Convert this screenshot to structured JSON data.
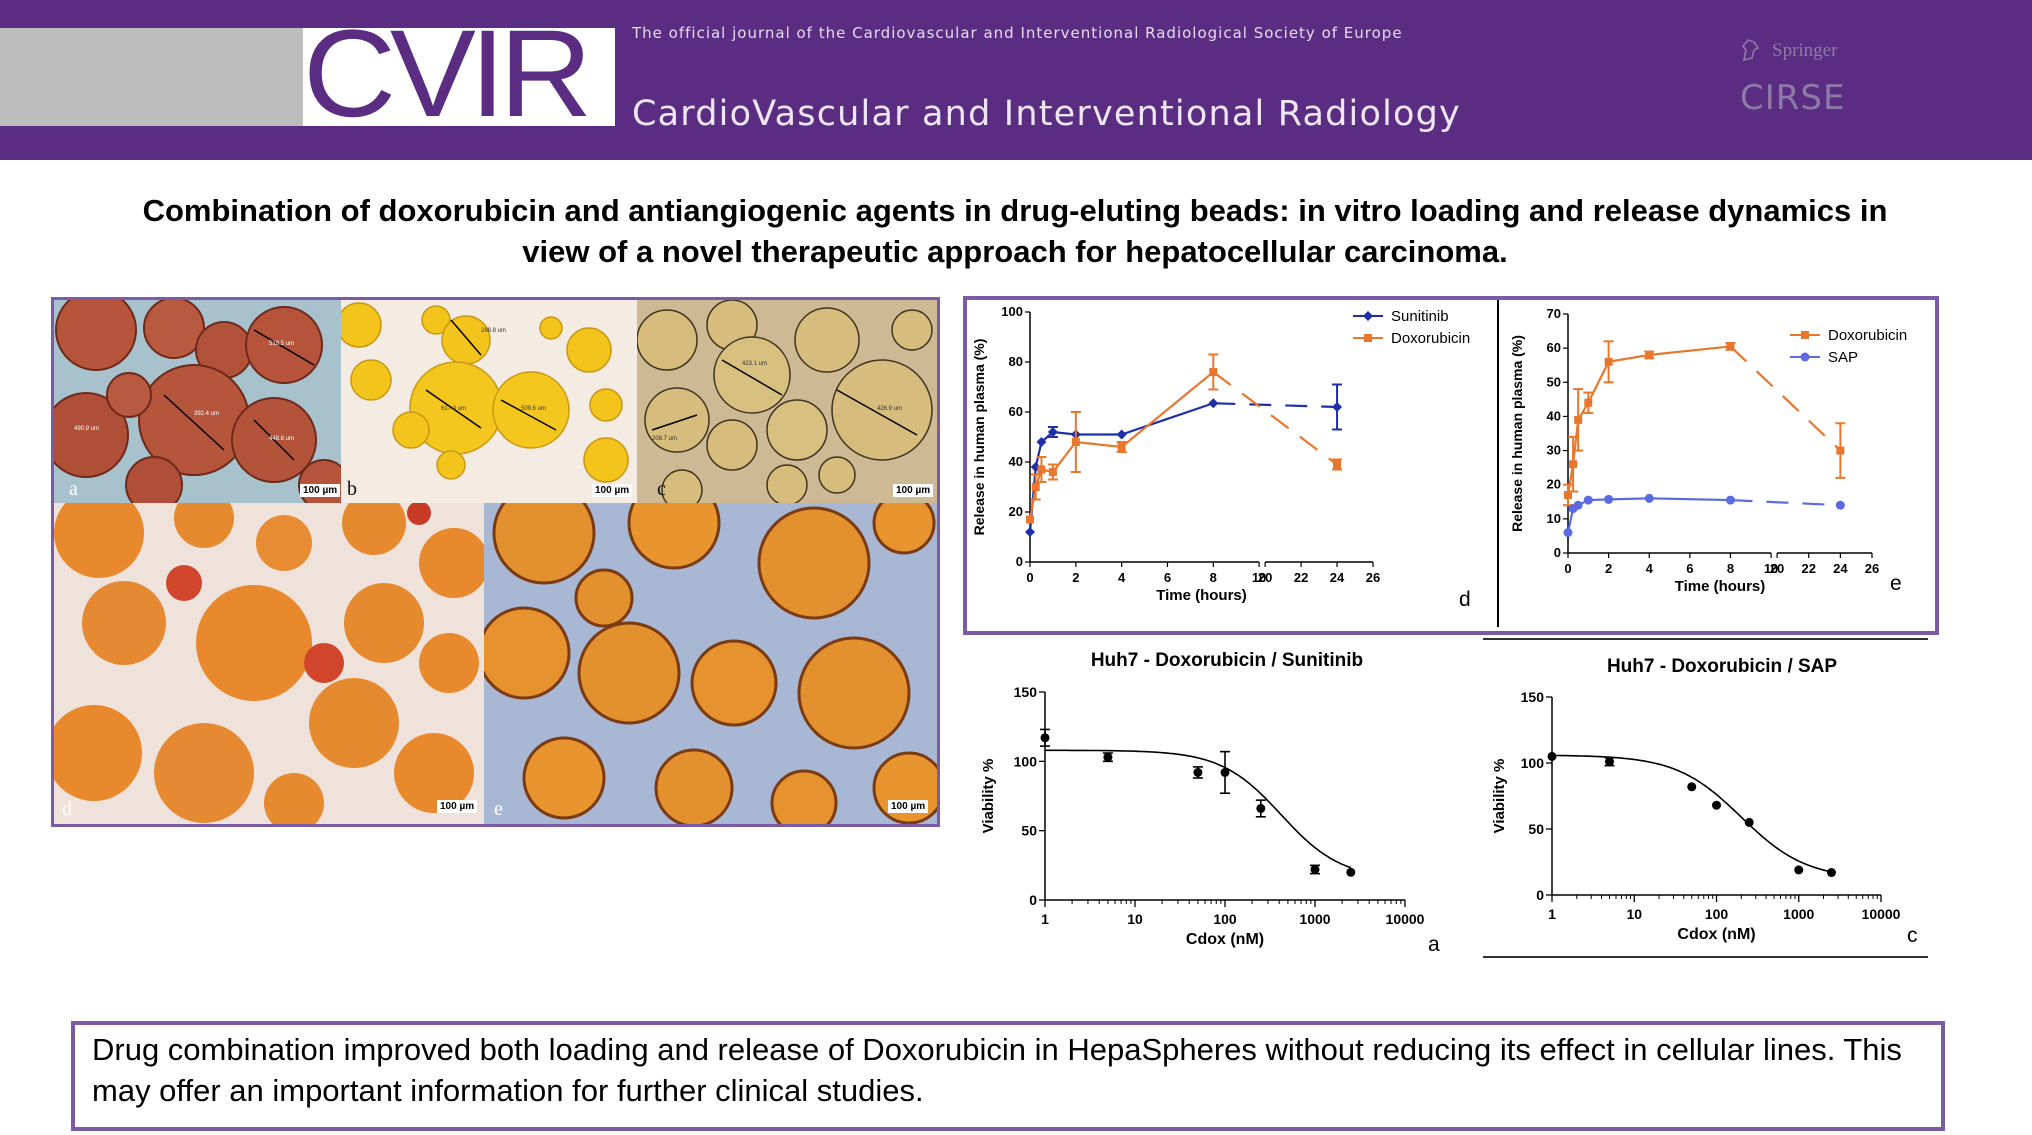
{
  "header": {
    "logo": "CVIR",
    "tagline": "The official journal of the  Cardiovascular and Interventional Radiological Society of Europe",
    "journal_name": "CardioVascular and Interventional Radiology",
    "publisher": "Springer",
    "society": "CIRSE"
  },
  "title": "Combination of doxorubicin and antiangiogenic agents in drug-eluting beads: in vitro loading and release dynamics in view of a novel therapeutic approach for hepatocellular carcinoma.",
  "photos": {
    "tiles": [
      {
        "label": "a",
        "scale": "100 µm",
        "measures": [
          "392.4 um",
          "448.8 um",
          "518.5 um",
          "490.9 um"
        ]
      },
      {
        "label": "b",
        "scale": "100 µm",
        "measures": [
          "288.8 um",
          "617.3 um",
          "509.6 um"
        ]
      },
      {
        "label": "c",
        "scale": "100 µm",
        "measures": [
          "423.1 um",
          "426.9 um",
          "208.7 um"
        ]
      },
      {
        "label": "d",
        "scale": "100 µm"
      },
      {
        "label": "e",
        "scale": "100 µm"
      }
    ],
    "colors": {
      "a": "#b5533a",
      "b": "#f2c21c",
      "c": "#c9a766",
      "d": "#e48a30",
      "e": "#d9852e"
    }
  },
  "chart_data": [
    {
      "type": "line",
      "panel_label": "d",
      "xlabel": "Time (hours)",
      "ylabel": "Release in human plasma (%)",
      "ylim": [
        0,
        100
      ],
      "yticks": [
        "0",
        "20",
        "40",
        "60",
        "80",
        "100"
      ],
      "xticks": [
        "0",
        "2",
        "4",
        "6",
        "8",
        "10",
        "20",
        "22",
        "24",
        "26"
      ],
      "x_axis_break": "10–20",
      "legend_position": "top-right",
      "series": [
        {
          "name": "Sunitinib",
          "color": "#1f2fa8",
          "marker": "diamond",
          "x": [
            0,
            0.25,
            0.5,
            1,
            2,
            4,
            8,
            24
          ],
          "y": [
            12,
            38,
            48,
            52,
            51,
            51,
            63.5,
            62
          ],
          "err": [
            0,
            0,
            0,
            2,
            0,
            0,
            0,
            9
          ]
        },
        {
          "name": "Doxorubicin",
          "color": "#e8772d",
          "marker": "square",
          "x": [
            0,
            0.25,
            0.5,
            1,
            2,
            4,
            8,
            24
          ],
          "y": [
            17,
            30,
            37,
            36,
            48,
            46,
            76,
            39
          ],
          "err": [
            0,
            5,
            5,
            3,
            12,
            2,
            7,
            2
          ]
        }
      ]
    },
    {
      "type": "line",
      "panel_label": "e",
      "xlabel": "Time (hours)",
      "ylabel": "Release in human plasma (%)",
      "ylim": [
        0,
        70
      ],
      "yticks": [
        "0",
        "10",
        "20",
        "30",
        "40",
        "50",
        "60",
        "70"
      ],
      "xticks": [
        "0",
        "2",
        "4",
        "6",
        "8",
        "10",
        "20",
        "22",
        "24",
        "26"
      ],
      "x_axis_break": "10–20",
      "legend_position": "top-right",
      "series": [
        {
          "name": "Doxorubicin",
          "color": "#e8772d",
          "marker": "square",
          "x": [
            0,
            0.25,
            0.5,
            1,
            2,
            4,
            8,
            24
          ],
          "y": [
            17,
            26,
            39,
            44,
            56,
            58,
            60.5,
            30
          ],
          "err": [
            3,
            8,
            9,
            3,
            6,
            1,
            1,
            8
          ]
        },
        {
          "name": "SAP",
          "color": "#5b6ae0",
          "marker": "circle",
          "x": [
            0,
            0.25,
            0.5,
            1,
            2,
            4,
            8,
            24
          ],
          "y": [
            6,
            13,
            14,
            15.5,
            15.7,
            16,
            15.5,
            14
          ],
          "err": [
            0,
            0,
            0,
            0,
            0,
            0,
            0,
            0
          ]
        }
      ]
    },
    {
      "type": "scatter",
      "panel_label": "a",
      "title": "Huh7 - Doxorubicin / Sunitinib",
      "xlabel": "Cdox (nM)",
      "ylabel": "Viability %",
      "x_scale": "log",
      "xticks": [
        "1",
        "10",
        "100",
        "1000",
        "10000"
      ],
      "yticks": [
        "0",
        "50",
        "100",
        "150"
      ],
      "ylim": [
        0,
        150
      ],
      "points": {
        "x": [
          1,
          5,
          50,
          100,
          250,
          1000,
          2500
        ],
        "y": [
          117,
          103,
          92,
          92,
          66,
          22,
          20
        ],
        "err": [
          6,
          3,
          4,
          15,
          6,
          3,
          0
        ]
      },
      "fit": {
        "top": 108,
        "bottom": 15,
        "ic50": 420,
        "hill": 1.3
      }
    },
    {
      "type": "scatter",
      "panel_label": "c",
      "title": "Huh7 - Doxorubicin / SAP",
      "xlabel": "Cdox (nM)",
      "ylabel": "Viability %",
      "x_scale": "log",
      "xticks": [
        "1",
        "10",
        "100",
        "1000",
        "10000"
      ],
      "yticks": [
        "0",
        "50",
        "100",
        "150"
      ],
      "ylim": [
        0,
        150
      ],
      "points": {
        "x": [
          1,
          5,
          50,
          100,
          250,
          1000,
          2500
        ],
        "y": [
          105,
          101,
          82,
          68,
          55,
          19,
          17
        ],
        "err": [
          0,
          3,
          0,
          0,
          0,
          0,
          0
        ]
      },
      "fit": {
        "top": 106,
        "bottom": 12,
        "ic50": 200,
        "hill": 1.1
      }
    }
  ],
  "summary": "Drug combination improved both loading and release of Doxorubicin in HepaSpheres without reducing its effect in cellular lines. This may offer an important information for further clinical studies."
}
